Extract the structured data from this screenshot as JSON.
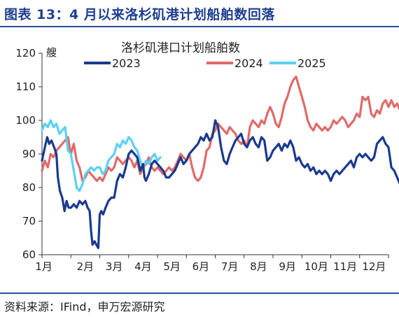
{
  "figure": {
    "title": "图表 13：4 月以来洛杉矶港计划船舶数回落",
    "source": "资料来源：IFind，申万宏源研究"
  },
  "chart_data": {
    "type": "line",
    "title": "洛杉矶港口计划船舶数",
    "ylabel": "艘",
    "ylim": [
      60,
      120
    ],
    "yticks": [
      60,
      70,
      80,
      90,
      100,
      110,
      120
    ],
    "xlim": [
      0,
      12
    ],
    "x_tick_labels": [
      "1月",
      "2月",
      "3月",
      "4月",
      "5月",
      "6月",
      "7月",
      "8月",
      "9月",
      "10月",
      "11月",
      "12月"
    ],
    "grid": false,
    "legend": "top",
    "series": [
      {
        "name": "2023",
        "color": "#1a3a8f",
        "points": [
          [
            0.0,
            88
          ],
          [
            0.1,
            92
          ],
          [
            0.18,
            95
          ],
          [
            0.25,
            93
          ],
          [
            0.33,
            94
          ],
          [
            0.42,
            92
          ],
          [
            0.5,
            90
          ],
          [
            0.55,
            83
          ],
          [
            0.62,
            79
          ],
          [
            0.7,
            77
          ],
          [
            0.78,
            73
          ],
          [
            0.85,
            76
          ],
          [
            0.92,
            74
          ],
          [
            1.0,
            74
          ],
          [
            1.1,
            75
          ],
          [
            1.2,
            74
          ],
          [
            1.3,
            76
          ],
          [
            1.4,
            75
          ],
          [
            1.5,
            76
          ],
          [
            1.58,
            74
          ],
          [
            1.65,
            73
          ],
          [
            1.7,
            67
          ],
          [
            1.75,
            63
          ],
          [
            1.82,
            64
          ],
          [
            1.88,
            63
          ],
          [
            1.95,
            62
          ],
          [
            2.0,
            72
          ],
          [
            2.05,
            73
          ],
          [
            2.12,
            72
          ],
          [
            2.2,
            74
          ],
          [
            2.3,
            76
          ],
          [
            2.4,
            77
          ],
          [
            2.5,
            77
          ],
          [
            2.6,
            82
          ],
          [
            2.7,
            84
          ],
          [
            2.8,
            83
          ],
          [
            2.9,
            86
          ],
          [
            3.0,
            90
          ],
          [
            3.1,
            91
          ],
          [
            3.2,
            90
          ],
          [
            3.3,
            89
          ],
          [
            3.4,
            85
          ],
          [
            3.5,
            87
          ],
          [
            3.55,
            83
          ],
          [
            3.6,
            82
          ],
          [
            3.7,
            84
          ],
          [
            3.8,
            87
          ],
          [
            3.9,
            88
          ],
          [
            4.0,
            87
          ],
          [
            4.1,
            86
          ],
          [
            4.2,
            85
          ],
          [
            4.3,
            83
          ],
          [
            4.4,
            83
          ],
          [
            4.5,
            84
          ],
          [
            4.6,
            85
          ],
          [
            4.7,
            87
          ],
          [
            4.8,
            89
          ],
          [
            4.9,
            87
          ],
          [
            5.0,
            88
          ],
          [
            5.1,
            90
          ],
          [
            5.2,
            91
          ],
          [
            5.3,
            92
          ],
          [
            5.4,
            93
          ],
          [
            5.5,
            95
          ],
          [
            5.6,
            94
          ],
          [
            5.7,
            96
          ],
          [
            5.8,
            94
          ],
          [
            5.9,
            95
          ],
          [
            6.0,
            100
          ],
          [
            6.1,
            98
          ],
          [
            6.2,
            92
          ],
          [
            6.3,
            88
          ],
          [
            6.4,
            87
          ],
          [
            6.5,
            90
          ],
          [
            6.6,
            92
          ],
          [
            6.7,
            94
          ],
          [
            6.8,
            95
          ],
          [
            6.9,
            96
          ],
          [
            7.0,
            93
          ],
          [
            7.1,
            92
          ],
          [
            7.2,
            94
          ],
          [
            7.3,
            95
          ],
          [
            7.4,
            93
          ],
          [
            7.5,
            92
          ],
          [
            7.6,
            95
          ],
          [
            7.7,
            94
          ],
          [
            7.8,
            88
          ],
          [
            7.9,
            89
          ],
          [
            8.0,
            91
          ],
          [
            8.1,
            92
          ],
          [
            8.2,
            93
          ],
          [
            8.3,
            91
          ],
          [
            8.4,
            93
          ],
          [
            8.5,
            92
          ],
          [
            8.6,
            94
          ],
          [
            8.7,
            92
          ],
          [
            8.8,
            88
          ],
          [
            8.9,
            89
          ],
          [
            9.0,
            87
          ],
          [
            9.1,
            86
          ],
          [
            9.2,
            87
          ],
          [
            9.3,
            85
          ],
          [
            9.4,
            86
          ],
          [
            9.5,
            84
          ],
          [
            9.6,
            85
          ],
          [
            9.7,
            84
          ],
          [
            9.8,
            85
          ],
          [
            9.9,
            84
          ],
          [
            10.0,
            82
          ],
          [
            10.1,
            84
          ],
          [
            10.2,
            85
          ],
          [
            10.3,
            84
          ],
          [
            10.4,
            85
          ],
          [
            10.5,
            86
          ],
          [
            10.6,
            87
          ],
          [
            10.7,
            88
          ],
          [
            10.8,
            86
          ],
          [
            10.9,
            89
          ],
          [
            11.0,
            90
          ],
          [
            11.1,
            89
          ],
          [
            11.2,
            90
          ],
          [
            11.3,
            89
          ],
          [
            11.4,
            88
          ],
          [
            11.5,
            89
          ],
          [
            11.6,
            93
          ],
          [
            11.7,
            94
          ],
          [
            11.8,
            95
          ],
          [
            11.9,
            93
          ],
          [
            12.0,
            92
          ],
          [
            12.1,
            86
          ],
          [
            12.2,
            85
          ],
          [
            12.3,
            83
          ],
          [
            12.4,
            81
          ],
          [
            12.5,
            80
          ]
        ]
      },
      {
        "name": "2024",
        "color": "#e06a6a",
        "points": [
          [
            0.0,
            85
          ],
          [
            0.1,
            88
          ],
          [
            0.2,
            86
          ],
          [
            0.3,
            90
          ],
          [
            0.4,
            89
          ],
          [
            0.5,
            91
          ],
          [
            0.6,
            92
          ],
          [
            0.7,
            93
          ],
          [
            0.8,
            94
          ],
          [
            0.9,
            95
          ],
          [
            1.0,
            90
          ],
          [
            1.1,
            93
          ],
          [
            1.2,
            88
          ],
          [
            1.3,
            86
          ],
          [
            1.4,
            82
          ],
          [
            1.5,
            83
          ],
          [
            1.6,
            85
          ],
          [
            1.7,
            84
          ],
          [
            1.8,
            83
          ],
          [
            1.9,
            82
          ],
          [
            2.0,
            83
          ],
          [
            2.1,
            82
          ],
          [
            2.2,
            84
          ],
          [
            2.3,
            86
          ],
          [
            2.4,
            85
          ],
          [
            2.5,
            86
          ],
          [
            2.6,
            89
          ],
          [
            2.7,
            88
          ],
          [
            2.8,
            87
          ],
          [
            2.9,
            88
          ],
          [
            3.0,
            89
          ],
          [
            3.1,
            88
          ],
          [
            3.2,
            86
          ],
          [
            3.3,
            88
          ],
          [
            3.4,
            84
          ],
          [
            3.5,
            86
          ],
          [
            3.6,
            87
          ],
          [
            3.7,
            89
          ],
          [
            3.8,
            86
          ],
          [
            3.9,
            85
          ],
          [
            4.0,
            86
          ],
          [
            4.1,
            85
          ],
          [
            4.2,
            84
          ],
          [
            4.3,
            85
          ],
          [
            4.4,
            86
          ],
          [
            4.5,
            85
          ],
          [
            4.6,
            86
          ],
          [
            4.7,
            88
          ],
          [
            4.8,
            90
          ],
          [
            4.9,
            89
          ],
          [
            5.0,
            88
          ],
          [
            5.1,
            90
          ],
          [
            5.2,
            86
          ],
          [
            5.3,
            83
          ],
          [
            5.4,
            82
          ],
          [
            5.5,
            83
          ],
          [
            5.6,
            86
          ],
          [
            5.7,
            91
          ],
          [
            5.8,
            92
          ],
          [
            5.9,
            96
          ],
          [
            6.0,
            97
          ],
          [
            6.1,
            99
          ],
          [
            6.2,
            98
          ],
          [
            6.3,
            97
          ],
          [
            6.4,
            96
          ],
          [
            6.5,
            98
          ],
          [
            6.6,
            97
          ],
          [
            6.7,
            96
          ],
          [
            6.8,
            94
          ],
          [
            6.9,
            93
          ],
          [
            7.0,
            94
          ],
          [
            7.1,
            92
          ],
          [
            7.2,
            98
          ],
          [
            7.3,
            100
          ],
          [
            7.4,
            99
          ],
          [
            7.5,
            98
          ],
          [
            7.6,
            100
          ],
          [
            7.7,
            99
          ],
          [
            7.8,
            102
          ],
          [
            7.9,
            104
          ],
          [
            8.0,
            102
          ],
          [
            8.1,
            99
          ],
          [
            8.2,
            98
          ],
          [
            8.3,
            101
          ],
          [
            8.4,
            105
          ],
          [
            8.5,
            107
          ],
          [
            8.6,
            110
          ],
          [
            8.7,
            112
          ],
          [
            8.8,
            113
          ],
          [
            8.9,
            110
          ],
          [
            9.0,
            107
          ],
          [
            9.1,
            104
          ],
          [
            9.2,
            100
          ],
          [
            9.3,
            98
          ],
          [
            9.4,
            97
          ],
          [
            9.5,
            99
          ],
          [
            9.6,
            98
          ],
          [
            9.7,
            97
          ],
          [
            9.8,
            98
          ],
          [
            9.9,
            97
          ],
          [
            10.0,
            98
          ],
          [
            10.1,
            100
          ],
          [
            10.2,
            99
          ],
          [
            10.3,
            100
          ],
          [
            10.4,
            101
          ],
          [
            10.5,
            100
          ],
          [
            10.6,
            98
          ],
          [
            10.7,
            99
          ],
          [
            10.8,
            100
          ],
          [
            10.9,
            102
          ],
          [
            11.0,
            101
          ],
          [
            11.1,
            107
          ],
          [
            11.2,
            106
          ],
          [
            11.3,
            107
          ],
          [
            11.4,
            102
          ],
          [
            11.5,
            101
          ],
          [
            11.6,
            103
          ],
          [
            11.7,
            102
          ],
          [
            11.8,
            105
          ],
          [
            11.9,
            106
          ],
          [
            12.0,
            104
          ],
          [
            12.1,
            106
          ],
          [
            12.2,
            104
          ],
          [
            12.3,
            105
          ],
          [
            12.4,
            103
          ],
          [
            12.5,
            99
          ]
        ]
      },
      {
        "name": "2025",
        "color": "#5bd0f5",
        "points": [
          [
            0.0,
            97
          ],
          [
            0.1,
            99
          ],
          [
            0.2,
            98
          ],
          [
            0.3,
            100
          ],
          [
            0.4,
            98
          ],
          [
            0.5,
            99
          ],
          [
            0.6,
            96
          ],
          [
            0.7,
            97
          ],
          [
            0.8,
            98
          ],
          [
            0.9,
            91
          ],
          [
            1.0,
            90
          ],
          [
            1.1,
            85
          ],
          [
            1.2,
            80
          ],
          [
            1.3,
            79
          ],
          [
            1.4,
            81
          ],
          [
            1.5,
            84
          ],
          [
            1.6,
            85
          ],
          [
            1.7,
            86
          ],
          [
            1.8,
            85
          ],
          [
            1.9,
            86
          ],
          [
            2.0,
            86
          ],
          [
            2.1,
            84
          ],
          [
            2.2,
            85
          ],
          [
            2.3,
            88
          ],
          [
            2.4,
            89
          ],
          [
            2.5,
            90
          ],
          [
            2.6,
            93
          ],
          [
            2.7,
            92
          ],
          [
            2.8,
            94
          ],
          [
            2.9,
            93
          ],
          [
            3.0,
            95
          ],
          [
            3.1,
            94
          ],
          [
            3.2,
            92
          ],
          [
            3.3,
            91
          ],
          [
            3.4,
            88
          ],
          [
            3.5,
            86
          ],
          [
            3.6,
            88
          ],
          [
            3.7,
            87
          ],
          [
            3.8,
            89
          ],
          [
            3.9,
            90
          ],
          [
            4.0,
            88
          ],
          [
            4.1,
            89
          ]
        ]
      }
    ]
  }
}
